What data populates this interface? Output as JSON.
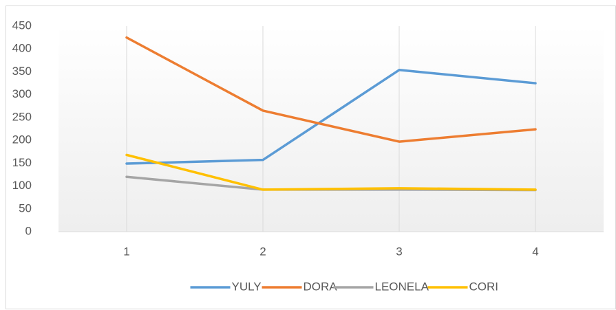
{
  "chart_data": {
    "type": "line",
    "categories": [
      "1",
      "2",
      "3",
      "4"
    ],
    "series": [
      {
        "name": "YULY",
        "color": "#5b9bd5",
        "values": [
          149,
          157,
          354,
          325
        ]
      },
      {
        "name": "DORA",
        "color": "#ed7d31",
        "values": [
          425,
          265,
          197,
          224
        ]
      },
      {
        "name": "LEONELA",
        "color": "#a5a5a5",
        "values": [
          120,
          92,
          92,
          91
        ]
      },
      {
        "name": "CORI",
        "color": "#ffc000",
        "values": [
          168,
          92,
          95,
          92
        ]
      }
    ],
    "ylim": [
      0,
      450
    ],
    "yticks": [
      0,
      50,
      100,
      150,
      200,
      250,
      300,
      350,
      400,
      450
    ],
    "xgrid": true,
    "legend": "bottom"
  }
}
